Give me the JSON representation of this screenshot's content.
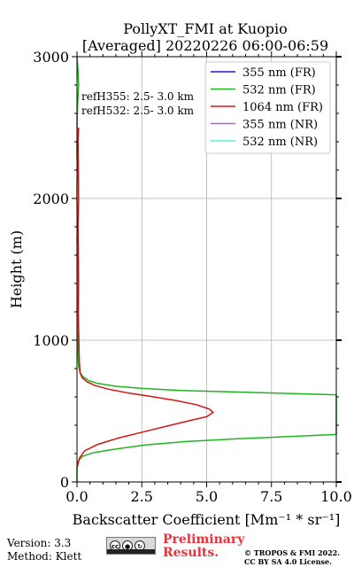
{
  "chart_data": {
    "type": "line",
    "title_line1": "PollyXT_FMI at Kuopio",
    "title_line2": "[Averaged] 20220226 06:00-06:59",
    "xlabel": "Backscatter Coefficient [Mm⁻¹ * sr⁻¹]",
    "ylabel": "Height (m)",
    "xlim": [
      0,
      10
    ],
    "ylim": [
      0,
      3000
    ],
    "xticks": [
      0,
      2.5,
      5,
      7.5,
      10
    ],
    "xtick_labels": [
      "0.0",
      "2.5",
      "5.0",
      "7.5",
      "10.0"
    ],
    "yticks": [
      0,
      1000,
      2000,
      3000
    ],
    "ytick_labels": [
      "0",
      "1000",
      "2000",
      "3000"
    ],
    "grid": true,
    "legend_position": "top-right",
    "annotations": [
      "refH355:  2.5- 3.0 km",
      "refH532:  2.5- 3.0 km"
    ],
    "series": [
      {
        "name": "355 nm (FR)",
        "color": "#1a1adb",
        "points": []
      },
      {
        "name": "532 nm (FR)",
        "color": "#1fb51f",
        "points": [
          [
            0.0,
            0
          ],
          [
            0.0,
            100
          ],
          [
            0.05,
            150
          ],
          [
            0.2,
            180
          ],
          [
            0.6,
            205
          ],
          [
            1.4,
            230
          ],
          [
            2.6,
            260
          ],
          [
            4.2,
            285
          ],
          [
            6.2,
            305
          ],
          [
            8.2,
            320
          ],
          [
            10.0,
            335
          ],
          [
            10.0,
            615
          ],
          [
            8.0,
            625
          ],
          [
            6.0,
            635
          ],
          [
            4.0,
            645
          ],
          [
            2.5,
            660
          ],
          [
            1.5,
            675
          ],
          [
            0.8,
            695
          ],
          [
            0.45,
            715
          ],
          [
            0.25,
            740
          ],
          [
            0.12,
            770
          ],
          [
            0.06,
            820
          ],
          [
            0.04,
            900
          ],
          [
            0.03,
            1000
          ],
          [
            0.02,
            1200
          ],
          [
            0.03,
            1400
          ],
          [
            0.02,
            1550
          ],
          [
            0.0,
            1600
          ],
          [
            0.05,
            1650
          ],
          [
            0.0,
            1700
          ],
          [
            0.02,
            1800
          ],
          [
            0.0,
            2000
          ],
          [
            0.0,
            2100
          ],
          [
            0.02,
            2200
          ],
          [
            0.0,
            2300
          ],
          [
            0.0,
            2400
          ],
          [
            0.05,
            2450
          ],
          [
            0.0,
            2500
          ],
          [
            0.02,
            2650
          ],
          [
            0.06,
            2800
          ],
          [
            0.04,
            2900
          ],
          [
            0.0,
            3000
          ]
        ]
      },
      {
        "name": "1064 nm (FR)",
        "color": "#d41515",
        "points": [
          [
            0.0,
            100
          ],
          [
            0.1,
            170
          ],
          [
            0.3,
            220
          ],
          [
            0.8,
            265
          ],
          [
            1.6,
            310
          ],
          [
            2.6,
            355
          ],
          [
            3.6,
            400
          ],
          [
            4.4,
            435
          ],
          [
            5.0,
            460
          ],
          [
            5.25,
            490
          ],
          [
            5.1,
            515
          ],
          [
            4.6,
            545
          ],
          [
            3.8,
            575
          ],
          [
            2.8,
            605
          ],
          [
            1.9,
            630
          ],
          [
            1.2,
            655
          ],
          [
            0.7,
            680
          ],
          [
            0.4,
            705
          ],
          [
            0.2,
            735
          ],
          [
            0.12,
            770
          ],
          [
            0.09,
            850
          ],
          [
            0.07,
            1000
          ],
          [
            0.05,
            1200
          ],
          [
            0.06,
            1400
          ],
          [
            0.05,
            1600
          ],
          [
            0.04,
            1800
          ],
          [
            0.06,
            2000
          ],
          [
            0.05,
            2200
          ],
          [
            0.04,
            2400
          ],
          [
            0.06,
            2500
          ]
        ]
      },
      {
        "name": "355 nm (NR)",
        "color": "#b35ce0",
        "points": []
      },
      {
        "name": "532 nm (NR)",
        "color": "#5cf2cf",
        "points": []
      }
    ]
  },
  "footer": {
    "version": "Version: 3.3",
    "method": "Method: Klett",
    "prelim_line1": "Preliminary",
    "prelim_line2": "Results.",
    "license_line1": "© TROPOS & FMI 2022.",
    "license_line2": "CC BY SA 4.0 License.",
    "cc_icons": [
      "cc-icon",
      "by-icon",
      "sa-icon"
    ]
  }
}
